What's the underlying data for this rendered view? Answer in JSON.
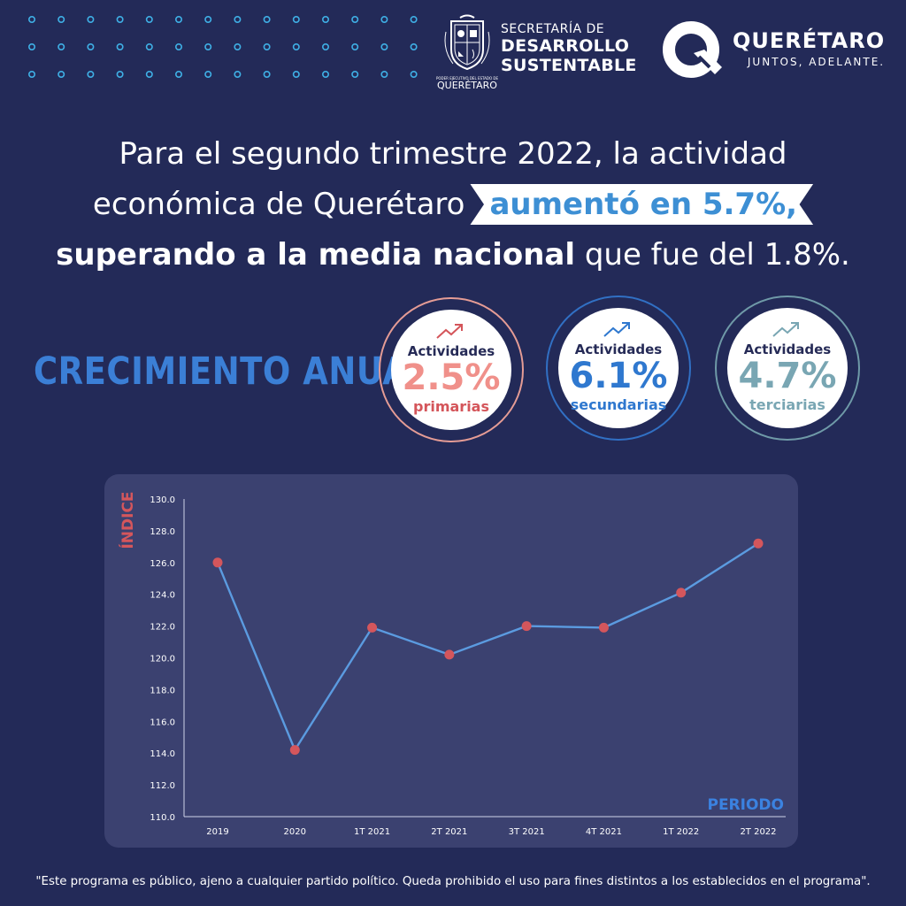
{
  "header": {
    "seal_caption_small": "PODER EJECUTIVO DEL ESTADO DE",
    "seal_caption": "QUERÉTARO",
    "secretaria_line1": "SECRETARÍA DE",
    "secretaria_line2": "DESARROLLO",
    "secretaria_line3": "SUSTENTABLE",
    "brand_name": "QUERÉTARO",
    "brand_tagline": "JUNTOS, ADELANTE."
  },
  "headline": {
    "line1": "Para el segundo trimestre 2022, la actividad",
    "line2_text": "económica de Querétaro",
    "line2_highlight": "aumentó en 5.7%,",
    "line3_bold": "superando a la media nacional",
    "line3_rest": " que fue del 1.8%."
  },
  "growth": {
    "title": "CRECIMIENTO ANUAL:",
    "items": [
      {
        "label": "Actividades",
        "value": "2.5%",
        "sub": "primarias",
        "value_color": "#f0908a",
        "sub_color": "#d4555a",
        "ring_color": "#e59c95",
        "arrow_color": "#d4555a"
      },
      {
        "label": "Actividades",
        "value": "6.1%",
        "sub": "secundarias",
        "value_color": "#2f78cf",
        "sub_color": "#2f78cf",
        "ring_color": "#3170c4",
        "arrow_color": "#2f78cf"
      },
      {
        "label": "Actividades",
        "value": "4.7%",
        "sub": "terciarias",
        "value_color": "#79a6b3",
        "sub_color": "#79a6b3",
        "ring_color": "#6f9aa8",
        "arrow_color": "#79a6b3"
      }
    ]
  },
  "chart_data": {
    "type": "line",
    "ylabel": "ÍNDICE",
    "xlabel": "PERIODO",
    "categories": [
      "2019",
      "2020",
      "1T 2021",
      "2T 2021",
      "3T 2021",
      "4T 2021",
      "1T 2022",
      "2T 2022"
    ],
    "values": [
      126.0,
      114.2,
      121.9,
      120.2,
      122.0,
      121.9,
      124.1,
      127.2
    ],
    "yticks": [
      "110.0",
      "112.0",
      "114.0",
      "116.0",
      "118.0",
      "120.0",
      "122.0",
      "124.0",
      "126.0",
      "128.0",
      "130.0"
    ],
    "ylim": [
      110,
      130
    ],
    "grid": false,
    "line_color": "#5b9be0",
    "marker_color": "#d4565c",
    "ylabel_color": "#d4565c",
    "xlabel_color": "#3b82e0"
  },
  "footer": "\"Este programa es público, ajeno a cualquier partido político. Queda prohibido el uso para fines distintos a los establecidos en el programa\"."
}
